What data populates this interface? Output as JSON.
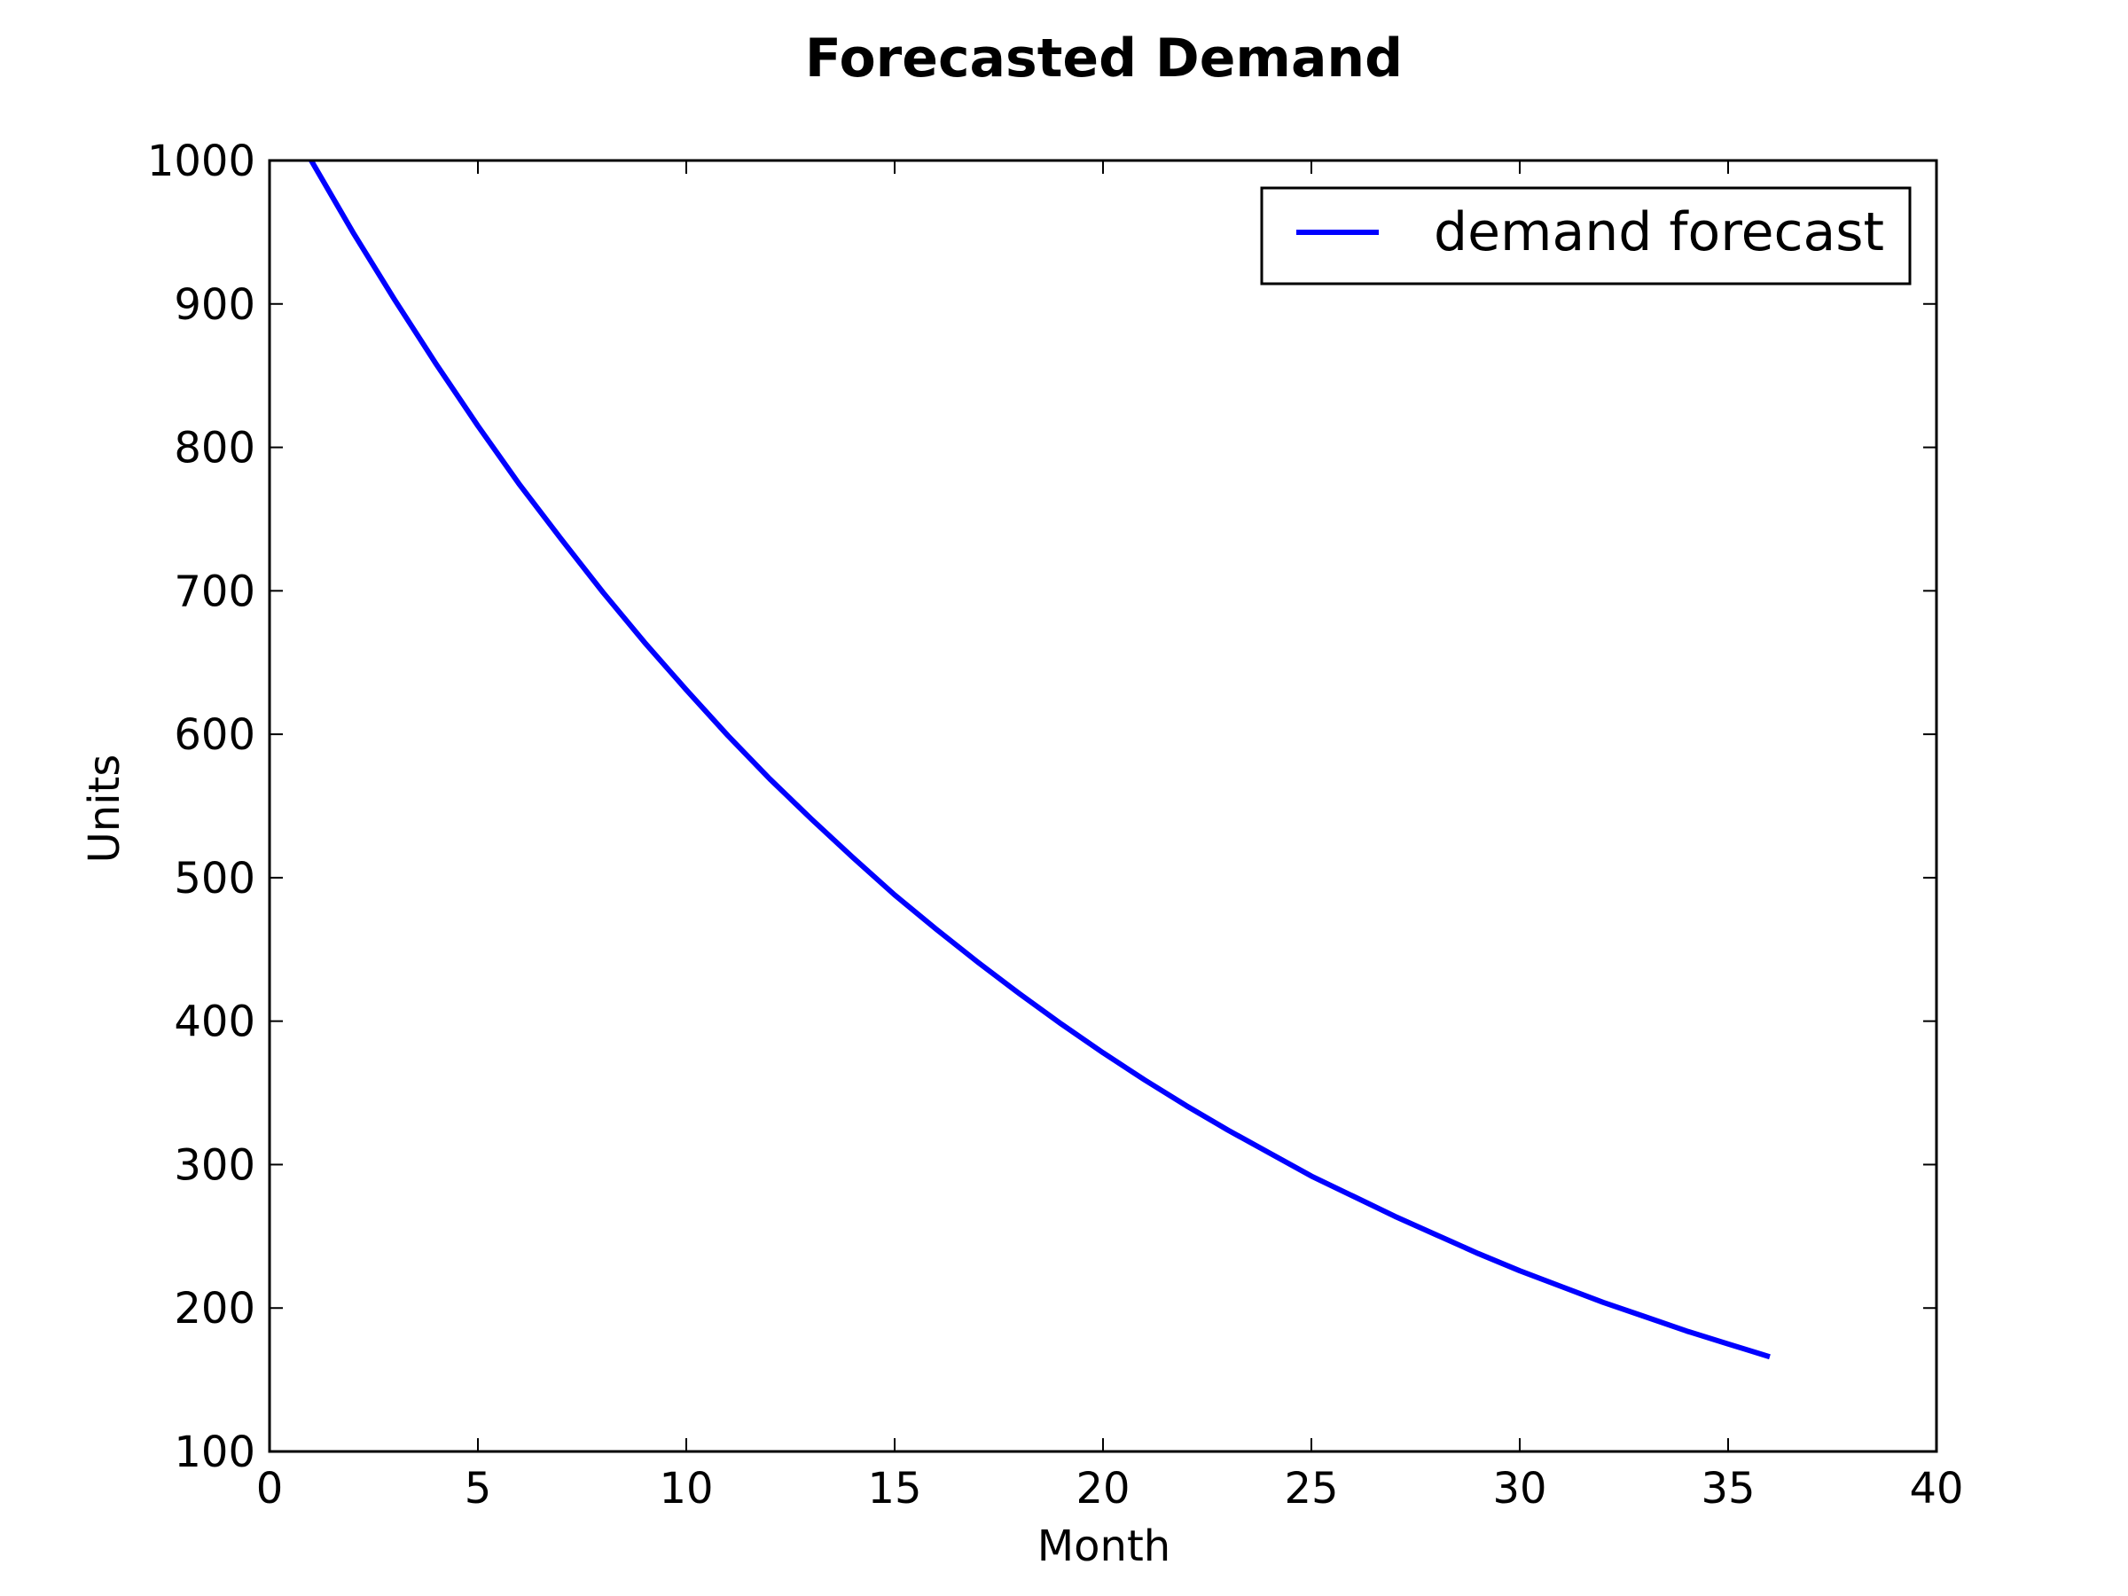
{
  "chart_data": {
    "type": "line",
    "title": "Forecasted Demand",
    "xlabel": "Month",
    "ylabel": "Units",
    "xlim": [
      0,
      40
    ],
    "ylim": [
      100,
      1000
    ],
    "xticks": [
      0,
      5,
      10,
      15,
      20,
      25,
      30,
      35,
      40
    ],
    "yticks": [
      100,
      200,
      300,
      400,
      500,
      600,
      700,
      800,
      900,
      1000
    ],
    "grid": false,
    "legend_position": "top-right",
    "series": [
      {
        "name": "demand forecast",
        "color": "#0000ff",
        "x": [
          1,
          2,
          3,
          4,
          5,
          6,
          7,
          8,
          9,
          10,
          11,
          12,
          13,
          14,
          15,
          16,
          17,
          18,
          19,
          20,
          21,
          22,
          23,
          24,
          25,
          26,
          27,
          28,
          29,
          30,
          31,
          32,
          33,
          34,
          35,
          36
        ],
        "y": [
          1000,
          950,
          903,
          858,
          815,
          774,
          736,
          699,
          664,
          631,
          599,
          569,
          541,
          514,
          488,
          464,
          441,
          419,
          398,
          378,
          359,
          341,
          324,
          308,
          292,
          278,
          264,
          251,
          238,
          226,
          215,
          204,
          194,
          184,
          175,
          166
        ]
      }
    ]
  }
}
